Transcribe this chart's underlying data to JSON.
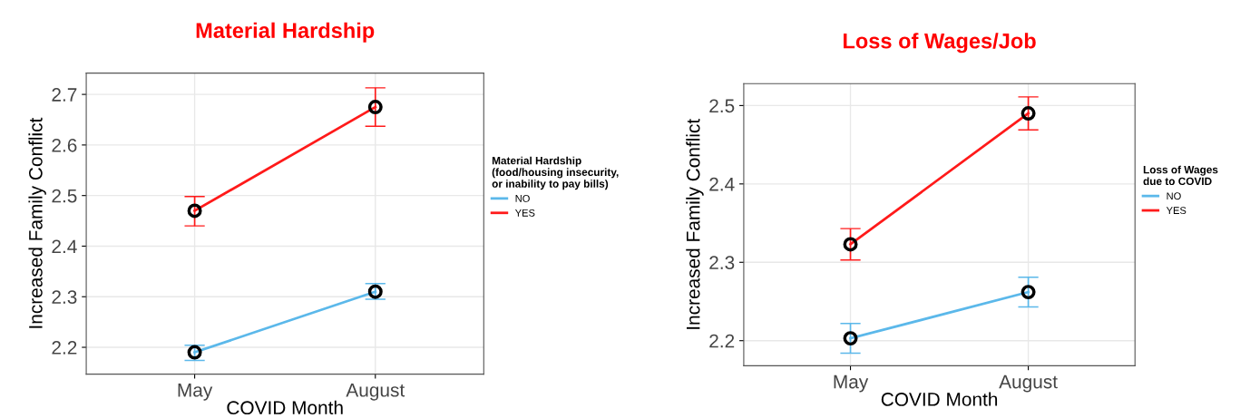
{
  "chart_data": [
    {
      "type": "line",
      "title": "Material Hardship",
      "xlabel": "COVID Month",
      "ylabel": "Increased Family Conflict",
      "legend_title": "Material Hardship\n(food/housing insecurity,\nor inability to pay bills)",
      "categories": [
        "May",
        "August"
      ],
      "ylim": [
        2.147,
        2.742
      ],
      "yticks": [
        2.2,
        2.3,
        2.4,
        2.5,
        2.6,
        2.7
      ],
      "grid": true,
      "legend": "right",
      "marker": "circle",
      "series": [
        {
          "name": "NO",
          "color": "#5bb8ea",
          "values": [
            2.19,
            2.31
          ],
          "errors": [
            [
              2.174,
              2.204
            ],
            [
              2.295,
              2.326
            ]
          ]
        },
        {
          "name": "YES",
          "color": "#ff1a1a",
          "values": [
            2.47,
            2.675
          ],
          "errors": [
            [
              2.44,
              2.498
            ],
            [
              2.637,
              2.713
            ]
          ]
        }
      ]
    },
    {
      "type": "line",
      "title": "Loss of Wages/Job",
      "xlabel": "COVID Month",
      "ylabel": "Increased Family Conflict",
      "legend_title": "Loss of Wages\ndue to COVID",
      "categories": [
        "May",
        "August"
      ],
      "ylim": [
        2.168,
        2.528
      ],
      "yticks": [
        2.2,
        2.3,
        2.4,
        2.5
      ],
      "grid": true,
      "legend": "right",
      "marker": "circle",
      "series": [
        {
          "name": "NO",
          "color": "#5bb8ea",
          "values": [
            2.203,
            2.262
          ],
          "errors": [
            [
              2.184,
              2.222
            ],
            [
              2.243,
              2.281
            ]
          ]
        },
        {
          "name": "YES",
          "color": "#ff1a1a",
          "values": [
            2.323,
            2.49
          ],
          "errors": [
            [
              2.303,
              2.343
            ],
            [
              2.469,
              2.511
            ]
          ]
        }
      ]
    }
  ]
}
